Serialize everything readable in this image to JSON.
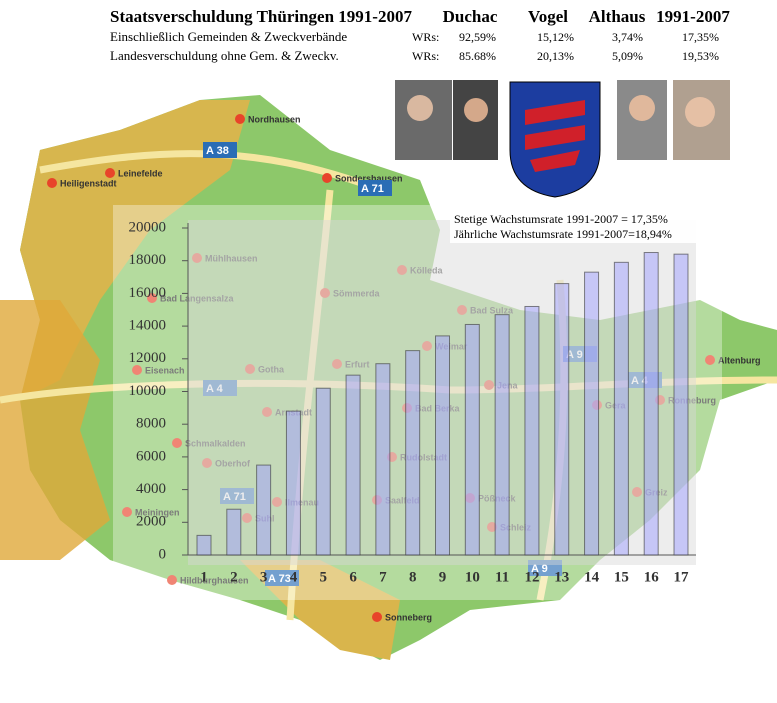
{
  "header": {
    "title": "Staatsverschuldung Thüringen 1991-2007",
    "columns": [
      "Duchac",
      "Vogel",
      "Althaus",
      "1991-2007"
    ],
    "rows": [
      {
        "label": "Einschließlich Gemeinden & Zweckverbände",
        "wrs": "WRs:",
        "values": [
          "92,59%",
          "15,12%",
          "3,74%",
          "17,35%"
        ]
      },
      {
        "label": "Landesverschuldung ohne  Gem. & Zweckv.",
        "wrs": "WRs:",
        "values": [
          "85.68%",
          "20,13%",
          "5,09%",
          "19,53%"
        ]
      }
    ]
  },
  "map": {
    "labels": [
      "Nordhausen",
      "Heiligenstadt",
      "Leinefelde",
      "Sondershausen",
      "Mühlhausen",
      "Bad Langensalza",
      "Sömmerda",
      "Kölleda",
      "Gotha",
      "Erfurt",
      "Weimar",
      "Bad Sulza",
      "Jena",
      "Gera",
      "Ronneburg",
      "Altenburg",
      "Eisenach",
      "Arnstadt",
      "Bad Berka",
      "Schmalkalden",
      "Oberhof",
      "Rudolstadt",
      "Suhl",
      "Ilmenau",
      "Saalfeld",
      "Pößneck",
      "Schleiz",
      "Meiningen",
      "Hildburghausen",
      "Sonneberg",
      "Greiz"
    ],
    "roads": [
      "A 38",
      "A 71",
      "A 4",
      "A 4",
      "A 9",
      "A 9",
      "A 71",
      "A 73"
    ]
  },
  "chart_data": {
    "type": "bar",
    "categories": [
      "1",
      "2",
      "3",
      "4",
      "5",
      "6",
      "7",
      "8",
      "9",
      "10",
      "11",
      "12",
      "13",
      "14",
      "15",
      "16",
      "17"
    ],
    "values": [
      1200,
      2800,
      5500,
      8800,
      10200,
      11000,
      11700,
      12500,
      13400,
      14100,
      14700,
      15200,
      16600,
      17300,
      17900,
      18500,
      18400
    ],
    "color": "#a0a0ff",
    "ylim": [
      0,
      20000
    ],
    "yticks": [
      0,
      2000,
      4000,
      6000,
      8000,
      10000,
      12000,
      14000,
      16000,
      18000,
      20000
    ],
    "annotations": [
      "Stetige Wachstumsrate  1991-2007 = 17,35%",
      "Jährliche Wachstumsrate 1991-2007=18,94%"
    ]
  }
}
